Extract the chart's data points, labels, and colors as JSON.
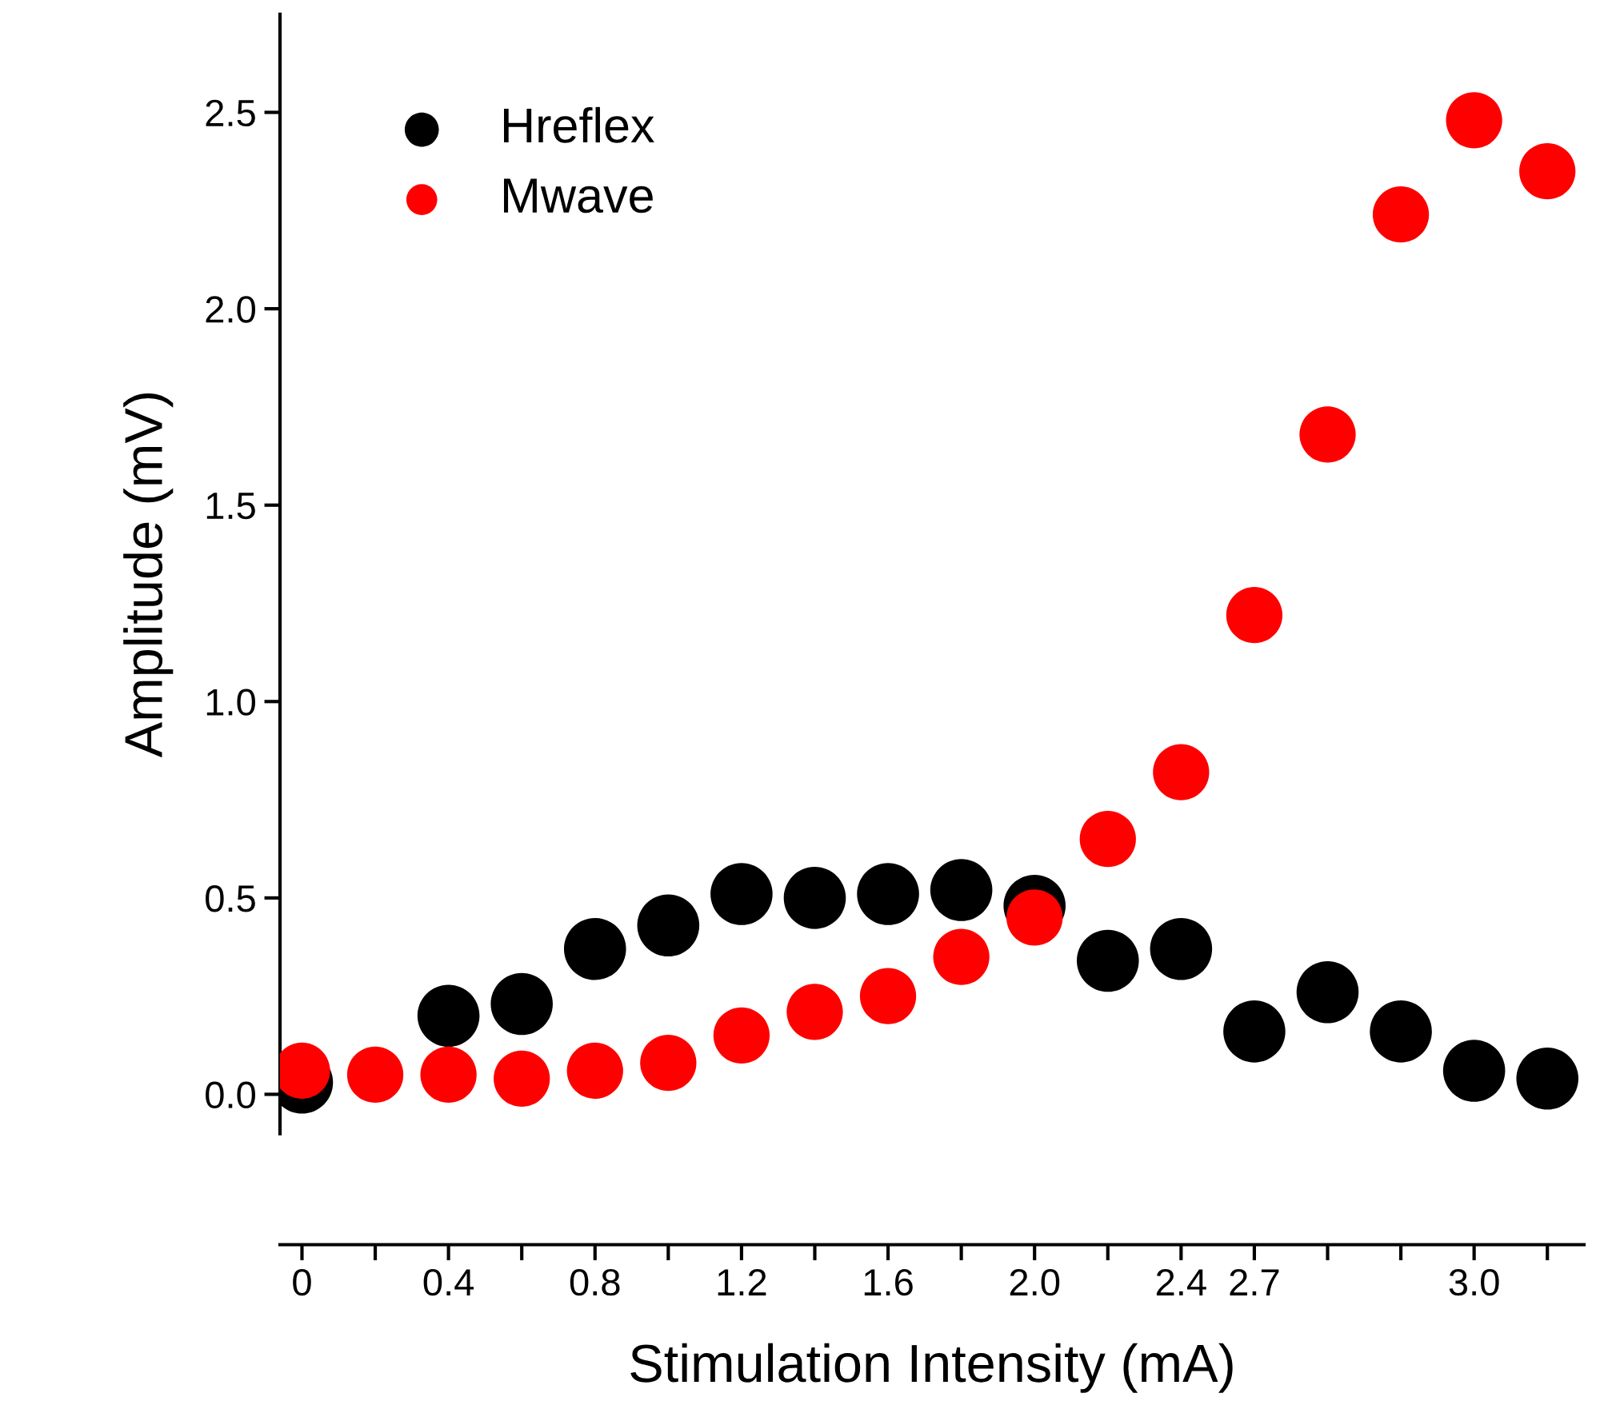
{
  "chart_data": {
    "type": "scatter",
    "xlabel": "Stimulation Intensity (mA)",
    "ylabel": "Amplitude (mV)",
    "categories": [
      "0",
      null,
      "0.4",
      null,
      "0.8",
      null,
      "1.2",
      null,
      "1.6",
      null,
      "2.0",
      null,
      "2.4",
      "2.7",
      null,
      null,
      "3.0",
      null
    ],
    "series": [
      {
        "name": "Hreflex",
        "color": "#000000",
        "values": [
          0.03,
          null,
          0.2,
          0.23,
          0.37,
          0.43,
          0.51,
          0.5,
          0.51,
          0.52,
          0.48,
          0.34,
          0.37,
          0.16,
          0.26,
          0.16,
          0.06,
          0.04
        ]
      },
      {
        "name": "Mwave",
        "color": "#ff0000",
        "values": [
          0.06,
          0.05,
          0.05,
          0.04,
          0.06,
          0.08,
          0.15,
          0.21,
          0.25,
          0.35,
          0.45,
          0.65,
          0.82,
          1.22,
          1.68,
          2.24,
          2.48,
          2.35
        ]
      }
    ],
    "ylim": [
      -0.1,
      2.75
    ],
    "yticks": [
      {
        "value": 0,
        "label": "0.0"
      },
      0.5,
      {
        "value": 1,
        "label": "1.0"
      },
      1.5,
      {
        "value": 2,
        "label": "2.0"
      },
      2.5
    ],
    "marker": "circle",
    "legend": "top left",
    "grid": false
  }
}
